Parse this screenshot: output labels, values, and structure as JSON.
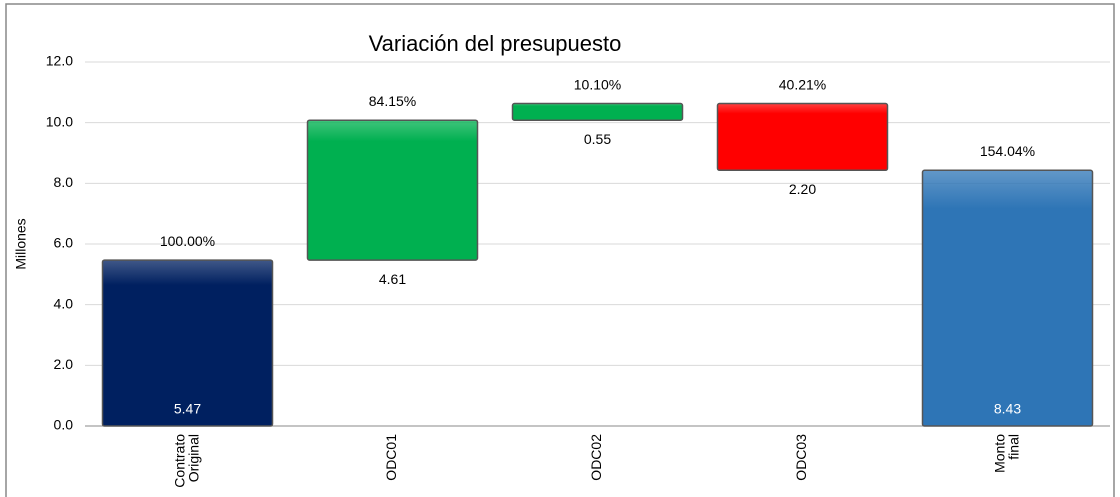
{
  "chart_data": {
    "type": "waterfall",
    "title": "Variación del presupuesto",
    "y_label": "Millones",
    "categories": [
      "Contrato Original",
      "ODC01",
      "ODC02",
      "ODC03",
      "Monto final"
    ],
    "kinds": [
      "total",
      "delta",
      "delta",
      "delta",
      "total"
    ],
    "values": [
      5.47,
      4.61,
      0.55,
      -2.2,
      8.43
    ],
    "value_labels": [
      "5.47",
      "4.61",
      "0.55",
      "2.20",
      "8.43"
    ],
    "percent_labels": [
      "100.00%",
      "84.15%",
      "10.10%",
      "40.21%",
      "154.04%"
    ],
    "colors": [
      "#002060",
      "#00b050",
      "#00b050",
      "#ff0000",
      "#2e75b6"
    ],
    "ylim": [
      0,
      12
    ],
    "yticks": [
      {
        "value": 0,
        "label": "0.0"
      },
      {
        "value": 2,
        "label": "2.0"
      },
      {
        "value": 4,
        "label": "4.0"
      },
      {
        "value": 6,
        "label": "6.0"
      },
      {
        "value": 8,
        "label": "8.0"
      },
      {
        "value": 10,
        "label": "10.0"
      },
      {
        "value": 12,
        "label": "12.0"
      }
    ],
    "grid": true
  }
}
